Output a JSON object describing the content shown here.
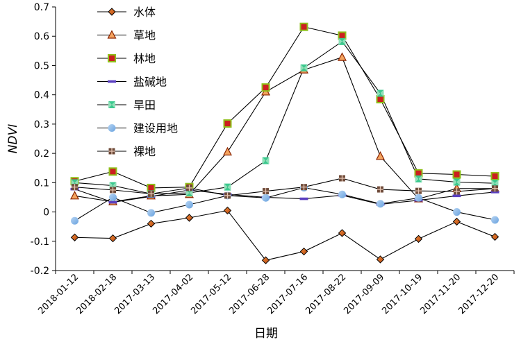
{
  "chart_data": {
    "type": "line",
    "xlabel": "日期",
    "ylabel": "NDVI",
    "ylim": [
      -0.2,
      0.7
    ],
    "yticks": [
      -0.2,
      -0.1,
      0,
      0.1,
      0.2,
      0.3,
      0.4,
      0.5,
      0.6,
      0.7
    ],
    "ytick_labels": [
      "-0.2",
      "-0.1",
      "0",
      "0.1",
      "0.2",
      "0.3",
      "0.4",
      "0.5",
      "0.6",
      "0.7"
    ],
    "grid": false,
    "legend_position": "top-left",
    "categories": [
      "2018-01-12",
      "2018-02-18",
      "2017-03-13",
      "2017-04-02",
      "2017-05-12",
      "2017-06-28",
      "2017-07-16",
      "2017-08-22",
      "2017-09-09",
      "2017-10-19",
      "2017-11-20",
      "2017-12-20"
    ],
    "series": [
      {
        "name": "水体",
        "marker": "diamond",
        "color": "#e2691e",
        "values": [
          -0.087,
          -0.09,
          -0.04,
          -0.02,
          0.005,
          -0.165,
          -0.135,
          -0.072,
          -0.162,
          -0.092,
          -0.033,
          -0.085
        ]
      },
      {
        "name": "草地",
        "marker": "triangle",
        "color": "#f4a460",
        "values": [
          0.055,
          0.035,
          0.055,
          0.06,
          0.205,
          0.41,
          0.485,
          0.528,
          0.19,
          0.045,
          0.08,
          0.08
        ]
      },
      {
        "name": "林地",
        "marker": "square",
        "color": "#cc1f1f",
        "values": [
          0.105,
          0.138,
          0.082,
          0.085,
          0.302,
          0.425,
          0.632,
          0.602,
          0.385,
          0.132,
          0.128,
          0.122
        ]
      },
      {
        "name": "盐碱地",
        "marker": "dash",
        "color": "#5a3fc0",
        "values": [
          0.078,
          0.033,
          0.053,
          0.075,
          0.06,
          0.05,
          0.045,
          0.057,
          0.026,
          0.04,
          0.055,
          0.068
        ]
      },
      {
        "name": "旱田",
        "marker": "x",
        "color": "#3bc98e",
        "values": [
          0.1,
          0.09,
          0.062,
          0.065,
          0.085,
          0.175,
          0.492,
          0.582,
          0.405,
          0.113,
          0.102,
          0.098
        ]
      },
      {
        "name": "建设用地",
        "marker": "circle",
        "color": "#86b8ea",
        "values": [
          -0.03,
          0.05,
          -0.003,
          0.025,
          0.056,
          0.048,
          0.083,
          0.06,
          0.028,
          0.048,
          0.0,
          -0.027
        ]
      },
      {
        "name": "裸地",
        "marker": "plus",
        "color": "#6e4b3a",
        "values": [
          0.085,
          0.075,
          0.062,
          0.082,
          0.056,
          0.071,
          0.085,
          0.115,
          0.077,
          0.072,
          0.07,
          0.08
        ]
      }
    ]
  }
}
